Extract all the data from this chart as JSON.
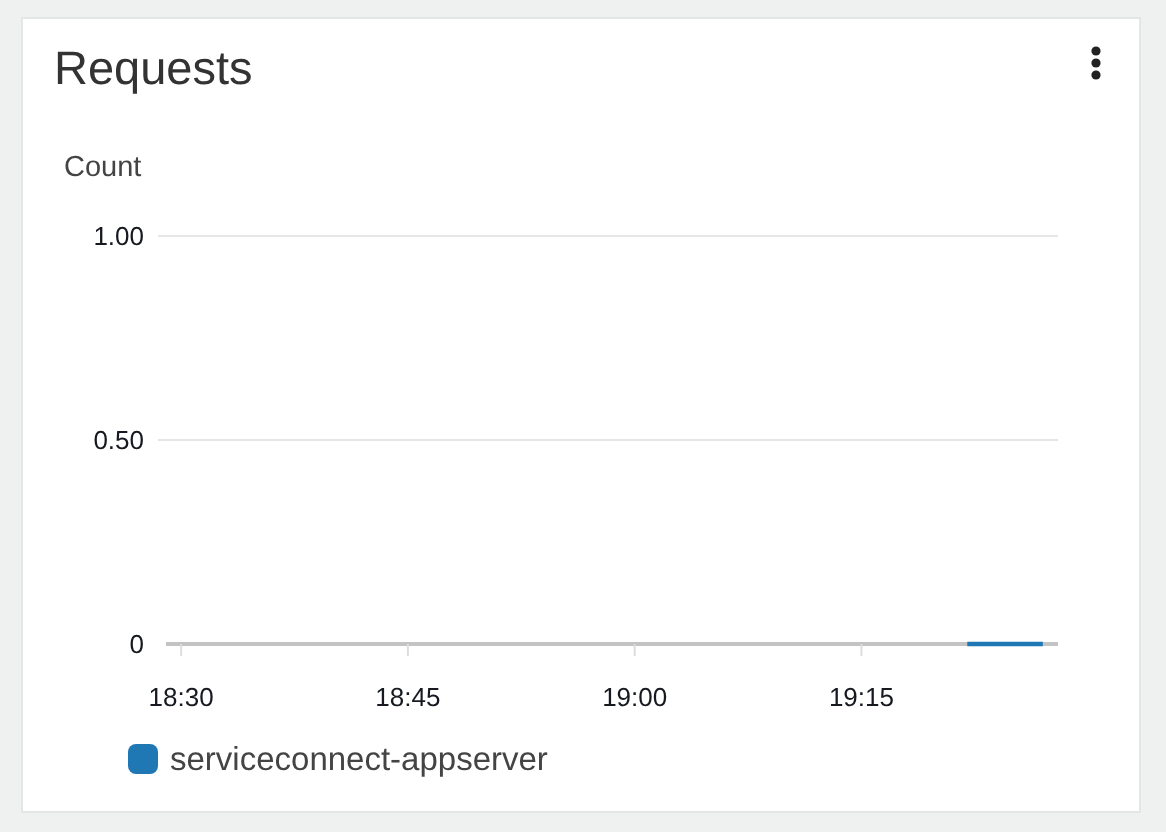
{
  "chart_data": {
    "type": "line",
    "title": "Requests",
    "ylabel": "Count",
    "x": [
      19.3667,
      19.45
    ],
    "series": [
      {
        "name": "serviceconnect-appserver",
        "color": "#1f77b4",
        "values": [
          0,
          0
        ]
      }
    ],
    "xlim": [
      18.4833,
      19.4667
    ],
    "xticks": [
      {
        "value": 18.5,
        "label": "18:30"
      },
      {
        "value": 18.75,
        "label": "18:45"
      },
      {
        "value": 19,
        "label": "19:00"
      },
      {
        "value": 19.25,
        "label": "19:15"
      }
    ],
    "ylim": [
      0,
      1
    ],
    "yticks": [
      0,
      {
        "value": 0.5,
        "label": "0.50"
      },
      {
        "value": 1,
        "label": "1.00"
      }
    ],
    "grid": "y",
    "legend": "bottom left"
  }
}
